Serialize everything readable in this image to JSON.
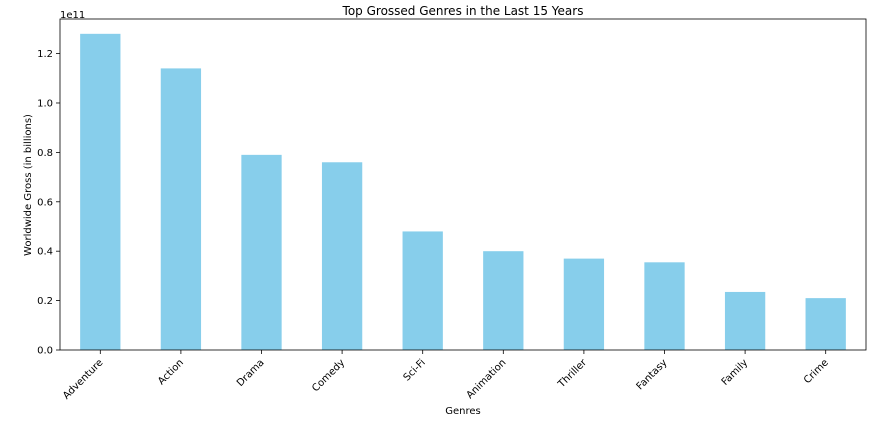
{
  "chart_data": {
    "type": "bar",
    "title": "Top Grossed Genres in the Last 15 Years",
    "xlabel": "Genres",
    "ylabel": "Worldwide Gross (in billions)",
    "y_offset_label": "1e11",
    "categories": [
      "Adventure",
      "Action",
      "Drama",
      "Comedy",
      "Sci-Fi",
      "Animation",
      "Thriller",
      "Fantasy",
      "Family",
      "Crime"
    ],
    "values": [
      1.28,
      1.14,
      0.79,
      0.76,
      0.48,
      0.4,
      0.37,
      0.355,
      0.235,
      0.21
    ],
    "ylim": [
      0,
      1.34
    ],
    "yticks": [
      0.0,
      0.2,
      0.4,
      0.6,
      0.8,
      1.0,
      1.2
    ],
    "ytick_labels": [
      "0.0",
      "0.2",
      "0.4",
      "0.6",
      "0.8",
      "1.0",
      "1.2"
    ],
    "bar_color": "#87ceeb",
    "grid": false,
    "legend": "none"
  }
}
